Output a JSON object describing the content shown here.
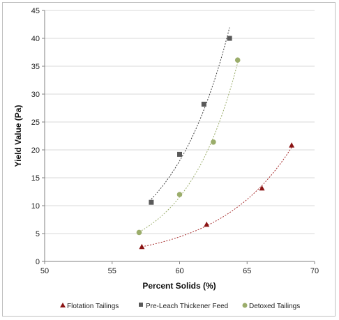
{
  "chart_data": {
    "type": "scatter",
    "xlabel": "Percent Solids (%)",
    "ylabel": "Yield Value (Pa)",
    "xlim": [
      50,
      70
    ],
    "ylim": [
      0,
      45
    ],
    "xticks": [
      50,
      55,
      60,
      65,
      70
    ],
    "yticks": [
      0,
      5,
      10,
      15,
      20,
      25,
      30,
      35,
      40,
      45
    ],
    "grid": "horizontal",
    "legend_position": "bottom",
    "series": [
      {
        "name": "Flotation Tailings",
        "marker": "triangle",
        "color": "#8b1414",
        "trendline_color": "#a52a2a",
        "trend_x": [
          57.2,
          68.3
        ],
        "points": [
          {
            "x": 57.2,
            "y": 2.6
          },
          {
            "x": 62.0,
            "y": 6.6
          },
          {
            "x": 66.1,
            "y": 13.1
          },
          {
            "x": 68.3,
            "y": 20.8
          }
        ]
      },
      {
        "name": "Pre-Leach Thickener Feed",
        "marker": "square",
        "color": "#595959",
        "trendline_color": "#404040",
        "trend_x": [
          57.9,
          63.7
        ],
        "points": [
          {
            "x": 57.9,
            "y": 10.6
          },
          {
            "x": 60.0,
            "y": 19.2
          },
          {
            "x": 61.8,
            "y": 28.2
          },
          {
            "x": 63.7,
            "y": 40.0
          }
        ]
      },
      {
        "name": "Detoxed Tailings",
        "marker": "circle",
        "color": "#9bad6b",
        "trendline_color": "#9bad6b",
        "trend_x": [
          57.0,
          64.3
        ],
        "points": [
          {
            "x": 57.0,
            "y": 5.2
          },
          {
            "x": 60.0,
            "y": 12.0
          },
          {
            "x": 62.5,
            "y": 21.4
          },
          {
            "x": 64.3,
            "y": 36.1
          }
        ]
      }
    ]
  }
}
